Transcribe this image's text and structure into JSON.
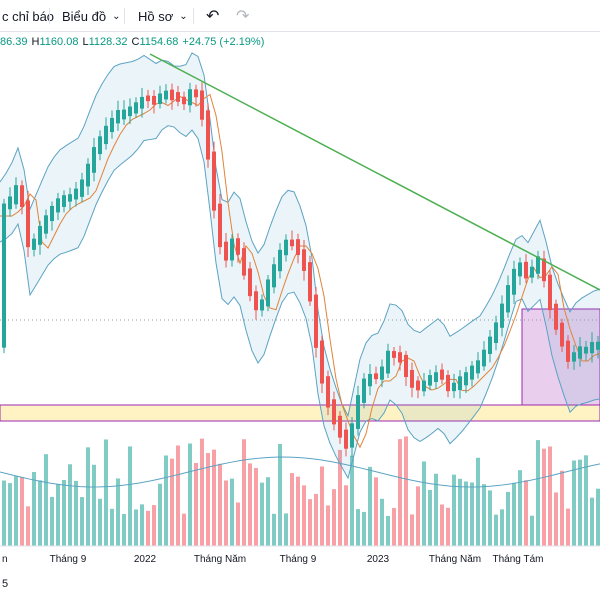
{
  "toolbar": {
    "indicators_label": "c chỉ báo",
    "chart_type_label": "Biểu đồ",
    "profile_label": "Hồ sơ",
    "undo_icon": "undo-icon",
    "redo_icon": "redo-icon"
  },
  "ohlc": {
    "open": "86.39",
    "high_label": "H",
    "high": "1160.08",
    "low_label": "L",
    "low": "1128.32",
    "close_label": "C",
    "close": "1154.68",
    "change": "+24.75 (+2.19%)"
  },
  "x_axis": {
    "labels": [
      "n",
      "Tháng 9",
      "2022",
      "Tháng Năm",
      "Tháng 9",
      "2023",
      "Tháng Năm",
      "Tháng Tám"
    ]
  },
  "bottom": {
    "text": "5"
  },
  "colors": {
    "up": "#26a69a",
    "down": "#ef5350",
    "vol_up": "#80cbc4",
    "vol_down": "#f7a1a6",
    "trendline": "#4caf50",
    "ma": "#e1833a",
    "band": "#5ba3c4",
    "band_fill": "#5ba3c4"
  },
  "chart_data": {
    "type": "candlestick",
    "x_labels": [
      "n",
      "Tháng 9",
      "2022",
      "Tháng Năm",
      "Tháng 9",
      "2023",
      "Tháng Năm",
      "Tháng Tám"
    ],
    "overlays": [
      "bollinger-bands",
      "moving-average",
      "trendline",
      "support-zone",
      "range-box"
    ]
  }
}
